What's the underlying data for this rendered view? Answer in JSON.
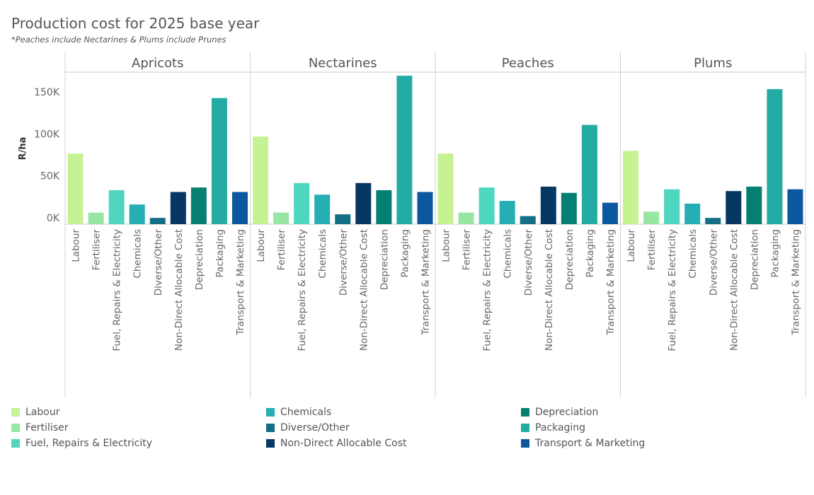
{
  "chart_data": {
    "type": "bar",
    "title": "Production cost for 2025 base year",
    "subtitle": "*Peaches include Nectarines & Plums include Prunes",
    "ylabel": "R/ha",
    "ylim": [
      0,
      170000
    ],
    "yticks": [
      {
        "value": 0,
        "label": "0K"
      },
      {
        "value": 50000,
        "label": "50K"
      },
      {
        "value": 100000,
        "label": "100K"
      },
      {
        "value": 150000,
        "label": "150K"
      }
    ],
    "categories": [
      "Labour",
      "Fertiliser",
      "Fuel, Repairs & Electricity",
      "Chemicals",
      "Diverse/Other",
      "Non-Direct Allocable Cost",
      "Depreciation",
      "Packaging",
      "Transport & Marketing"
    ],
    "colors": [
      "#c7f293",
      "#98e6a3",
      "#4fd6be",
      "#26aeb5",
      "#146e86",
      "#073763",
      "#067f73",
      "#24aca4",
      "#0c58a0"
    ],
    "panels": [
      {
        "name": "Apricots",
        "values": [
          79000,
          13000,
          38000,
          22000,
          7000,
          36000,
          41000,
          141000,
          36000
        ]
      },
      {
        "name": "Nectarines",
        "values": [
          98000,
          13000,
          46000,
          33000,
          11000,
          46000,
          38000,
          166000,
          36000
        ]
      },
      {
        "name": "Peaches",
        "values": [
          79000,
          13000,
          41000,
          26000,
          9000,
          42000,
          35000,
          111000,
          24000
        ]
      },
      {
        "name": "Plums",
        "values": [
          82000,
          14000,
          39000,
          23000,
          7000,
          37000,
          42000,
          151000,
          39000
        ]
      }
    ],
    "grid": false,
    "legend_position": "bottom"
  }
}
